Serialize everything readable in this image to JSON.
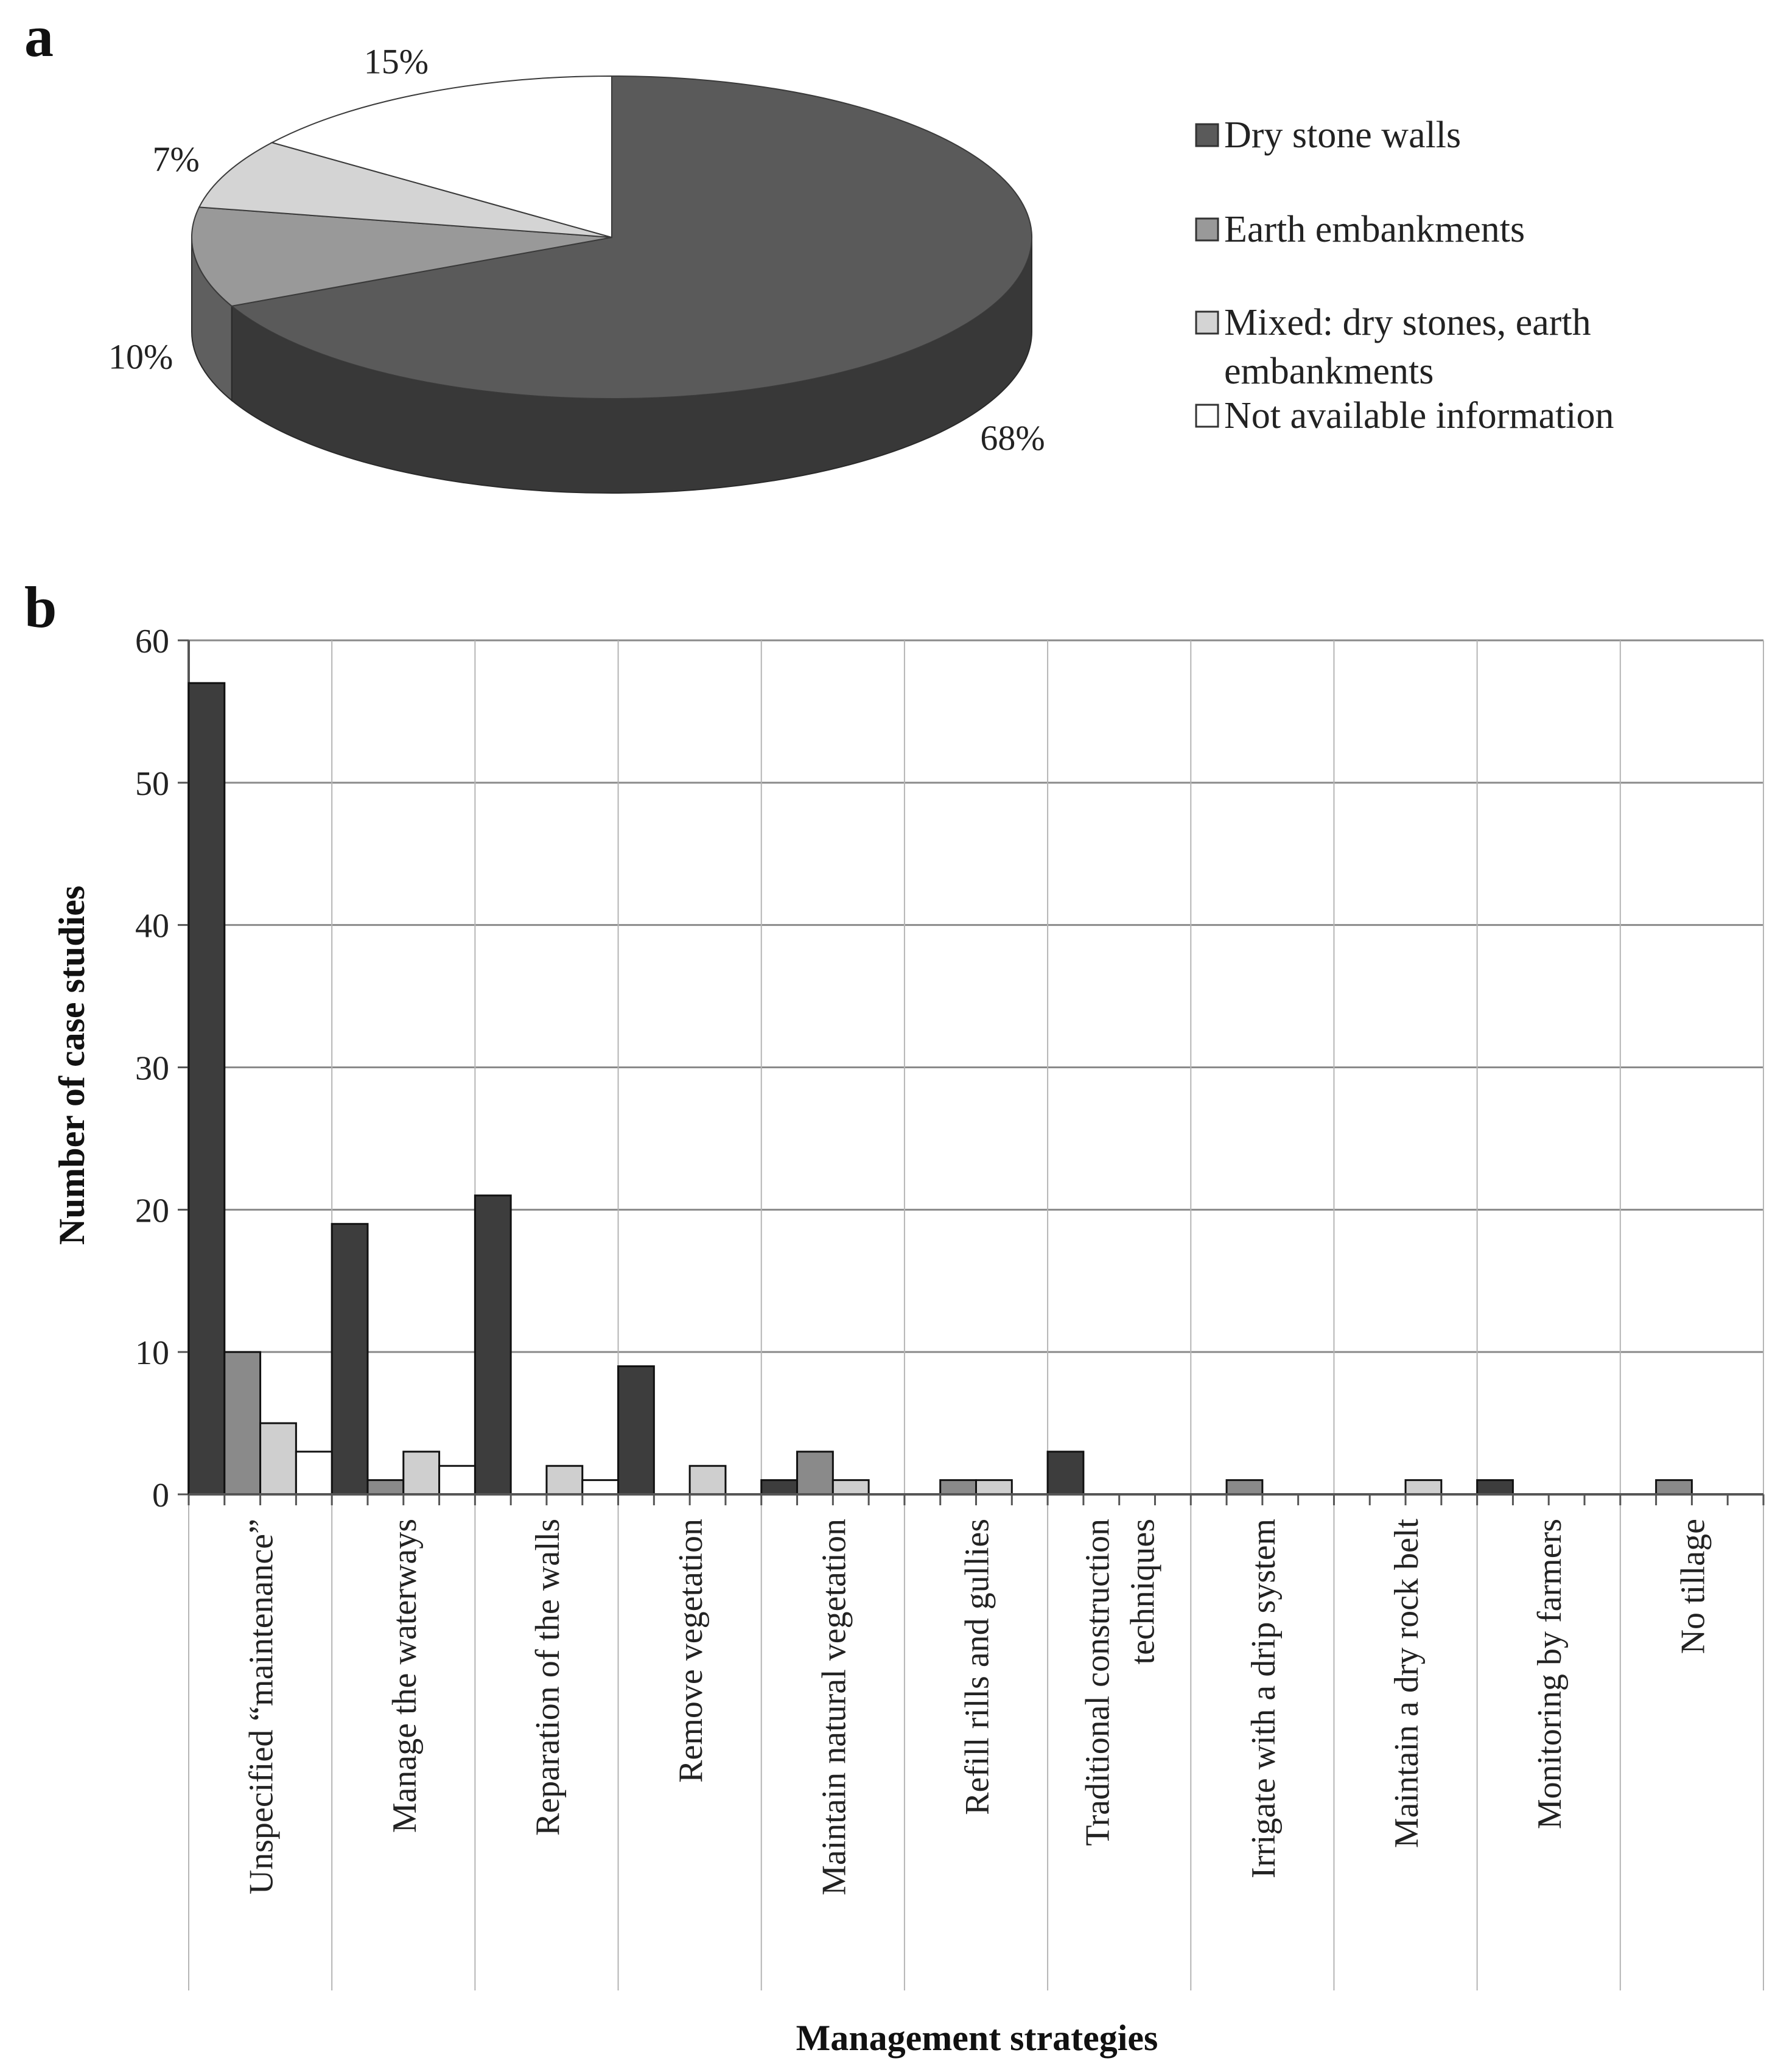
{
  "chart_data": [
    {
      "type": "pie",
      "panel": "a",
      "title": "",
      "labels": [
        "Dry stone walls",
        "Earth embankments",
        "Mixed: dry stones, earth embankments",
        "Not available information"
      ],
      "legend_lines": [
        [
          "Dry stone walls"
        ],
        [
          "Earth embankments"
        ],
        [
          "Mixed: dry stones, earth",
          "embankments"
        ],
        [
          "Not available information"
        ]
      ],
      "values": [
        68,
        10,
        7,
        15
      ],
      "value_labels": [
        "68%",
        "10%",
        "7%",
        "15%"
      ],
      "colors": [
        "#5a5a5a",
        "#999999",
        "#d4d4d4",
        "#ffffff"
      ],
      "legend": "right"
    },
    {
      "type": "bar",
      "panel": "b",
      "title": "",
      "xlabel": "Management strategies",
      "ylabel": "Number of case studies",
      "ylim": [
        0,
        60
      ],
      "yticks": [
        "0",
        "10",
        "20",
        "30",
        "40",
        "50",
        "60"
      ],
      "grid": true,
      "categories": [
        [
          "Unspecified  “maintenance”"
        ],
        [
          "Manage the waterways"
        ],
        [
          "Reparation of the walls"
        ],
        [
          "Remove vegetation"
        ],
        [
          "Maintain natural vegetation"
        ],
        [
          "Refill rills and gullies"
        ],
        [
          "Traditional construction",
          "techniques"
        ],
        [
          "Irrigate with a drip system"
        ],
        [
          "Maintain a dry rock belt"
        ],
        [
          "Monitoring by farmers"
        ],
        [
          "No tillage"
        ]
      ],
      "series": [
        {
          "name": "Dry stone walls",
          "color": "#3d3d3d",
          "values": [
            57,
            19,
            21,
            9,
            1,
            0,
            3,
            0,
            0,
            1,
            0
          ]
        },
        {
          "name": "Earth embankments",
          "color": "#8a8a8a",
          "values": [
            10,
            1,
            0,
            0,
            3,
            1,
            0,
            1,
            0,
            0,
            1
          ]
        },
        {
          "name": "Mixed: dry stones, earth embankments",
          "color": "#cfcfcf",
          "values": [
            5,
            3,
            2,
            2,
            1,
            1,
            0,
            0,
            1,
            0,
            0
          ]
        },
        {
          "name": "Not available information",
          "color": "#ffffff",
          "values": [
            3,
            2,
            1,
            0,
            0,
            0,
            0,
            0,
            0,
            0,
            0
          ]
        }
      ]
    }
  ],
  "panel_labels": {
    "a": "a",
    "b": "b"
  }
}
